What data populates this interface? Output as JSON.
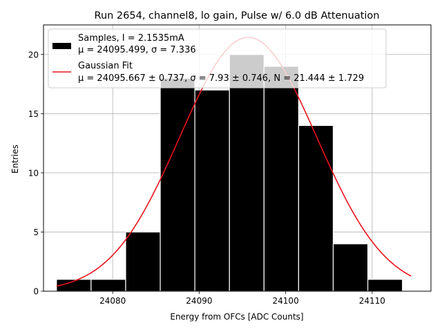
{
  "chart_data": {
    "type": "bar",
    "title": "Run 2654, channel8, lo gain, Pulse w/ 6.0 dB Attenuation",
    "xlabel": "Energy from OFCs [ADC Counts]",
    "ylabel": "Entries",
    "xlim": [
      24072.0,
      24116.8
    ],
    "ylim": [
      0,
      22.5
    ],
    "xticks": [
      24080,
      24090,
      24100,
      24110
    ],
    "yticks": [
      0,
      5,
      10,
      15,
      20
    ],
    "grid": true,
    "bin_edges": [
      24073.5,
      24077.5,
      24081.5,
      24085.5,
      24089.5,
      24093.5,
      24097.5,
      24101.5,
      24105.5,
      24109.5,
      24113.5
    ],
    "counts": [
      1,
      1,
      5,
      18,
      17,
      20,
      19,
      14,
      4,
      1
    ],
    "bar_color": "#000000",
    "fit": {
      "mu": 24095.667,
      "sigma": 7.93,
      "N": 21.444,
      "color": "#e8141c",
      "x_range": [
        24073.5,
        24114.5
      ]
    },
    "legend": {
      "position": "upper-left",
      "entries": [
        {
          "kind": "patch",
          "line1": "Samples, I = 2.1535mA",
          "line2": "μ = 24095.499, σ = 7.336",
          "color": "#000000"
        },
        {
          "kind": "line",
          "line1": "Gaussian Fit",
          "line2": "μ = 24095.667 ± 0.737, σ = 7.93 ± 0.746, N = 21.444 ± 1.729",
          "color": "#e8141c"
        }
      ]
    }
  }
}
